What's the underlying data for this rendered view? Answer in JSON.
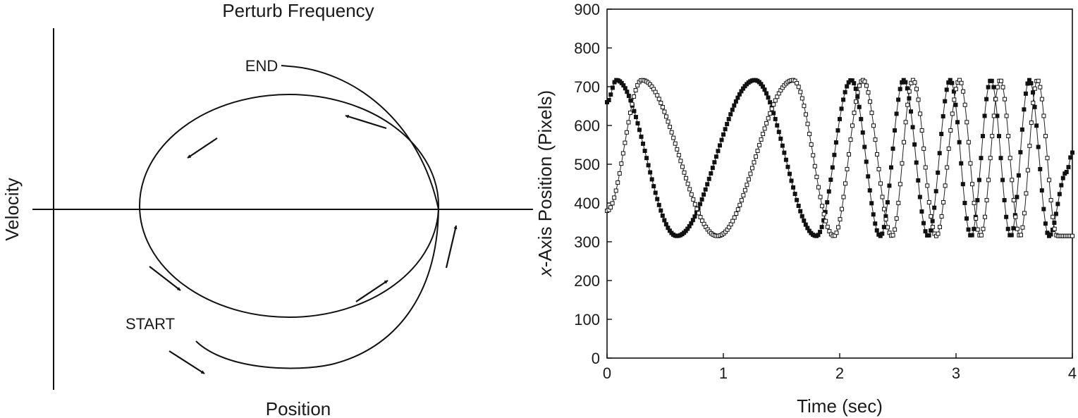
{
  "chart_data": [
    {
      "type": "phase-portrait",
      "title": "Perturb Frequency",
      "xlabel": "Position",
      "ylabel": "Velocity",
      "annotations": [
        "START",
        "END"
      ],
      "grid": false
    },
    {
      "type": "scatter",
      "title": "",
      "xlabel": "Time (sec)",
      "ylabel_italic": "x",
      "ylabel_rest": "-Axis Position (Pixels)",
      "xlim": [
        0,
        4
      ],
      "ylim": [
        0,
        900
      ],
      "xticks": [
        "0",
        "1",
        "2",
        "3",
        "4"
      ],
      "yticks": [
        "0",
        "100",
        "200",
        "300",
        "400",
        "500",
        "600",
        "700",
        "800",
        "900"
      ],
      "grid": false,
      "series": [
        {
          "marker": "filled-square",
          "x": [
            0.0,
            0.08,
            0.6,
            1.27,
            1.8,
            2.1,
            2.35,
            2.55,
            2.76,
            2.95,
            3.13,
            3.3,
            3.47,
            3.63,
            3.8,
            3.95,
            4.0
          ],
          "y": [
            660,
            717,
            315,
            717,
            315,
            717,
            315,
            717,
            315,
            717,
            315,
            717,
            315,
            717,
            315,
            480,
            530
          ]
        },
        {
          "marker": "open-square",
          "x": [
            0.0,
            0.3,
            0.95,
            1.6,
            1.95,
            2.2,
            2.45,
            2.63,
            2.83,
            3.03,
            3.21,
            3.38,
            3.55,
            3.7,
            3.87,
            4.0
          ],
          "y": [
            380,
            717,
            315,
            717,
            315,
            717,
            315,
            717,
            315,
            717,
            315,
            717,
            315,
            717,
            315,
            315
          ]
        }
      ]
    }
  ]
}
